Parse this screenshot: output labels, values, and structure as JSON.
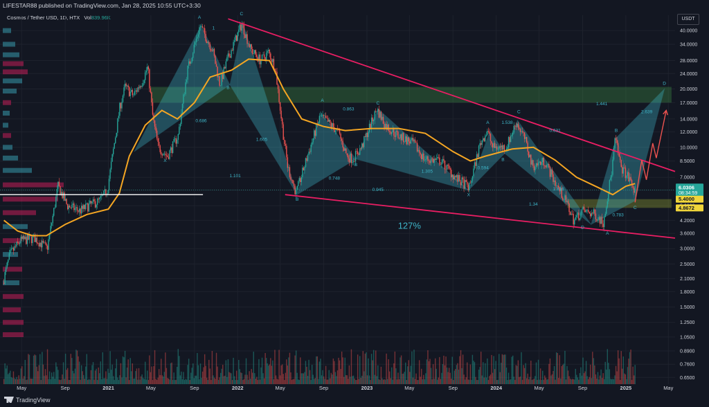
{
  "header": {
    "publisher": "LIFESTAR88 published on TradingView.com, Jan 28, 2025 10:55 UTC+3:30",
    "symbol": "Cosmos / Tether USD, 1D, HTX",
    "volume_label": "Vol",
    "volume_value": "839.96K",
    "currency": "USDT"
  },
  "footer": {
    "logo_text": "TradingView"
  },
  "colors": {
    "background": "#131722",
    "ma": "#f5a623",
    "channel": "#e91e63",
    "pattern_fill": "#3fb6c9",
    "green_zone": "#4caf50",
    "up": "#26a69a",
    "down": "#ef5350",
    "price_tag": "#26a69a",
    "support_tag": "#f0d53a"
  },
  "chart_data": {
    "type": "candlestick",
    "y_scale": "log",
    "ylim": [
      0.6,
      48
    ],
    "xlim": [
      "2020-03-01",
      "2025-05-20"
    ],
    "y_ticks": [
      "40.0000",
      "34.0000",
      "28.0000",
      "24.0000",
      "20.0000",
      "17.0000",
      "14.0000",
      "12.0000",
      "10.0000",
      "8.5000",
      "7.0000",
      "6.0000",
      "5.0000",
      "4.2000",
      "3.6000",
      "3.0000",
      "2.5000",
      "2.1000",
      "1.8000",
      "1.5000",
      "1.2500",
      "1.0500",
      "0.8900",
      "0.7600",
      "0.6500"
    ],
    "x_ticks": [
      {
        "label": "May",
        "date": "2020-05-01"
      },
      {
        "label": "Sep",
        "date": "2020-09-01"
      },
      {
        "label": "2021",
        "date": "2021-01-01"
      },
      {
        "label": "May",
        "date": "2021-05-01"
      },
      {
        "label": "Sep",
        "date": "2021-09-01"
      },
      {
        "label": "2022",
        "date": "2022-01-01"
      },
      {
        "label": "May",
        "date": "2022-05-01"
      },
      {
        "label": "Sep",
        "date": "2022-09-01"
      },
      {
        "label": "2023",
        "date": "2023-01-01"
      },
      {
        "label": "May",
        "date": "2023-05-01"
      },
      {
        "label": "Sep",
        "date": "2023-09-01"
      },
      {
        "label": "2024",
        "date": "2024-01-01"
      },
      {
        "label": "May",
        "date": "2024-05-01"
      },
      {
        "label": "Sep",
        "date": "2024-09-01"
      },
      {
        "label": "2025",
        "date": "2025-01-01"
      },
      {
        "label": "May",
        "date": "2025-05-01"
      }
    ],
    "price_path": [
      [
        "2020-03-12",
        2.0
      ],
      [
        "2020-04-01",
        2.8
      ],
      [
        "2020-05-01",
        3.3
      ],
      [
        "2020-06-10",
        3.4
      ],
      [
        "2020-07-15",
        3.0
      ],
      [
        "2020-08-15",
        6.3
      ],
      [
        "2020-09-10",
        5.0
      ],
      [
        "2020-10-15",
        4.7
      ],
      [
        "2020-11-10",
        5.0
      ],
      [
        "2020-12-10",
        5.3
      ],
      [
        "2021-01-01",
        6.0
      ],
      [
        "2021-02-05",
        16.0
      ],
      [
        "2021-02-20",
        20.5
      ],
      [
        "2021-03-15",
        18.5
      ],
      [
        "2021-04-10",
        22.0
      ],
      [
        "2021-04-25",
        26.0
      ],
      [
        "2021-05-10",
        14.0
      ],
      [
        "2021-05-25",
        10.0
      ],
      [
        "2021-06-20",
        9.0
      ],
      [
        "2021-07-20",
        11.5
      ],
      [
        "2021-08-15",
        25.0
      ],
      [
        "2021-09-20",
        42.5
      ],
      [
        "2021-10-10",
        36.0
      ],
      [
        "2021-10-25",
        32.0
      ],
      [
        "2021-11-15",
        21.0
      ],
      [
        "2021-12-05",
        28.0
      ],
      [
        "2022-01-16",
        43.5
      ],
      [
        "2022-02-10",
        32.0
      ],
      [
        "2022-03-10",
        28.0
      ],
      [
        "2022-04-01",
        31.0
      ],
      [
        "2022-04-20",
        26.0
      ],
      [
        "2022-05-12",
        12.0
      ],
      [
        "2022-05-25",
        8.0
      ],
      [
        "2022-06-18",
        5.8
      ],
      [
        "2022-07-20",
        9.0
      ],
      [
        "2022-08-25",
        14.5
      ],
      [
        "2022-09-15",
        13.5
      ],
      [
        "2022-10-15",
        12.0
      ],
      [
        "2022-11-09",
        9.0
      ],
      [
        "2022-11-25",
        8.7
      ],
      [
        "2022-12-20",
        10.0
      ],
      [
        "2023-02-01",
        15.8
      ],
      [
        "2023-02-25",
        13.0
      ],
      [
        "2023-04-01",
        11.5
      ],
      [
        "2023-05-15",
        10.5
      ],
      [
        "2023-06-15",
        8.7
      ],
      [
        "2023-08-01",
        8.5
      ],
      [
        "2023-09-10",
        7.0
      ],
      [
        "2023-10-20",
        6.2
      ],
      [
        "2023-11-20",
        10.5
      ],
      [
        "2023-12-10",
        12.2
      ],
      [
        "2023-12-25",
        10.0
      ],
      [
        "2024-02-01",
        10.0
      ],
      [
        "2024-03-01",
        13.5
      ],
      [
        "2024-03-25",
        11.0
      ],
      [
        "2024-04-15",
        8.0
      ],
      [
        "2024-05-20",
        8.5
      ],
      [
        "2024-06-20",
        6.5
      ],
      [
        "2024-07-20",
        5.2
      ],
      [
        "2024-08-10",
        4.2
      ],
      [
        "2024-09-05",
        4.7
      ],
      [
        "2024-10-10",
        4.5
      ],
      [
        "2024-11-01",
        4.1
      ],
      [
        "2024-11-25",
        7.5
      ],
      [
        "2024-12-05",
        11.2
      ],
      [
        "2024-12-20",
        8.0
      ],
      [
        "2025-01-15",
        6.8
      ],
      [
        "2025-01-27",
        6.03
      ]
    ],
    "moving_average": [
      [
        "2020-03-12",
        4.2
      ],
      [
        "2020-04-20",
        3.7
      ],
      [
        "2020-06-01",
        3.5
      ],
      [
        "2020-07-10",
        3.5
      ],
      [
        "2020-09-01",
        4.0
      ],
      [
        "2020-11-01",
        4.5
      ],
      [
        "2021-01-01",
        4.8
      ],
      [
        "2021-02-01",
        5.8
      ],
      [
        "2021-03-01",
        9.0
      ],
      [
        "2021-04-15",
        13.0
      ],
      [
        "2021-06-01",
        15.5
      ],
      [
        "2021-07-15",
        14.0
      ],
      [
        "2021-09-01",
        17.0
      ],
      [
        "2021-10-15",
        23.0
      ],
      [
        "2021-12-15",
        25.0
      ],
      [
        "2022-02-01",
        28.5
      ],
      [
        "2022-04-01",
        28.0
      ],
      [
        "2022-05-10",
        20.0
      ],
      [
        "2022-07-01",
        14.0
      ],
      [
        "2022-09-01",
        12.8
      ],
      [
        "2022-11-01",
        12.2
      ],
      [
        "2023-01-15",
        12.5
      ],
      [
        "2023-04-01",
        12.5
      ],
      [
        "2023-06-15",
        11.8
      ],
      [
        "2023-09-01",
        9.5
      ],
      [
        "2023-10-20",
        8.5
      ],
      [
        "2023-12-01",
        9.0
      ],
      [
        "2024-02-15",
        9.8
      ],
      [
        "2024-04-15",
        10.0
      ],
      [
        "2024-06-15",
        8.6
      ],
      [
        "2024-08-15",
        7.0
      ],
      [
        "2024-10-15",
        6.2
      ],
      [
        "2024-11-25",
        5.7
      ],
      [
        "2025-01-01",
        6.3
      ],
      [
        "2025-01-27",
        6.5
      ]
    ],
    "channel_upper": [
      [
        "2021-12-05",
        46.0
      ],
      [
        "2025-05-20",
        7.5
      ]
    ],
    "channel_lower": [
      [
        "2022-05-15",
        5.7
      ],
      [
        "2025-05-20",
        3.4
      ]
    ],
    "white_line": {
      "from": "2020-03-01",
      "to": "2021-09-25",
      "price": 5.7
    },
    "green_zone": {
      "from": "2021-05-01",
      "to": "2025-05-10",
      "low": 17.0,
      "high": 20.5
    },
    "support_zone": {
      "from": "2024-07-20",
      "to": "2025-05-10",
      "low": 4.87,
      "high": 5.4
    },
    "patterns": [
      {
        "name": "pattern-1",
        "points": [
          [
            "2021-03-15",
            9.5
          ],
          [
            "2021-09-20",
            42.5
          ],
          [
            "2021-12-10",
            21.0
          ],
          [
            "2022-01-16",
            43.5
          ],
          [
            "2022-06-18",
            5.7
          ]
        ]
      },
      {
        "name": "pattern-2",
        "points": [
          [
            "2022-06-18",
            5.7
          ],
          [
            "2022-08-25",
            15.0
          ],
          [
            "2022-12-01",
            8.7
          ],
          [
            "2023-02-01",
            15.8
          ],
          [
            "2023-10-15",
            6.0
          ]
        ]
      },
      {
        "name": "pattern-3",
        "points": [
          [
            "2023-10-15",
            6.0
          ],
          [
            "2023-12-15",
            12.2
          ],
          [
            "2024-01-25",
            9.3
          ],
          [
            "2024-03-01",
            13.8
          ],
          [
            "2024-09-25",
            4.0
          ]
        ]
      },
      {
        "name": "pattern-4",
        "points": [
          [
            "2024-09-25",
            4.0
          ],
          [
            "2024-12-05",
            11.2
          ],
          [
            "2025-01-27",
            5.3
          ],
          [
            "2025-04-20",
            20.0
          ]
        ]
      }
    ],
    "projection_arrow": [
      [
        "2025-01-27",
        5.2
      ],
      [
        "2025-02-15",
        8.6
      ],
      [
        "2025-02-28",
        6.8
      ],
      [
        "2025-03-18",
        10.5
      ],
      [
        "2025-03-28",
        8.8
      ],
      [
        "2025-04-25",
        15.5
      ]
    ],
    "volume_profile": [
      {
        "price": 40,
        "length": 12,
        "color": "#3fb6c9"
      },
      {
        "price": 34,
        "length": 18,
        "color": "#3fb6c9"
      },
      {
        "price": 30,
        "length": 24,
        "color": "#3fb6c9"
      },
      {
        "price": 27,
        "length": 30,
        "color": "#e91e63"
      },
      {
        "price": 24.5,
        "length": 36,
        "color": "#e91e63"
      },
      {
        "price": 22,
        "length": 28,
        "color": "#3fb6c9"
      },
      {
        "price": 19.5,
        "length": 20,
        "color": "#3fb6c9"
      },
      {
        "price": 17,
        "length": 12,
        "color": "#e91e63"
      },
      {
        "price": 15,
        "length": 10,
        "color": "#3fb6c9"
      },
      {
        "price": 13,
        "length": 8,
        "color": "#3fb6c9"
      },
      {
        "price": 11.5,
        "length": 12,
        "color": "#e91e63"
      },
      {
        "price": 10,
        "length": 14,
        "color": "#3fb6c9"
      },
      {
        "price": 8.8,
        "length": 22,
        "color": "#3fb6c9"
      },
      {
        "price": 7.6,
        "length": 42,
        "color": "#3fb6c9"
      },
      {
        "price": 6.4,
        "length": 88,
        "color": "#e91e63"
      },
      {
        "price": 5.4,
        "length": 80,
        "color": "#e91e63"
      },
      {
        "price": 4.6,
        "length": 48,
        "color": "#e91e63"
      },
      {
        "price": 3.9,
        "length": 36,
        "color": "#3fb6c9"
      },
      {
        "price": 3.3,
        "length": 26,
        "color": "#e91e63"
      },
      {
        "price": 2.8,
        "length": 22,
        "color": "#3fb6c9"
      },
      {
        "price": 2.35,
        "length": 28,
        "color": "#e91e63"
      },
      {
        "price": 2.0,
        "length": 24,
        "color": "#3fb6c9"
      },
      {
        "price": 1.7,
        "length": 30,
        "color": "#e91e63"
      },
      {
        "price": 1.45,
        "length": 26,
        "color": "#e91e63"
      },
      {
        "price": 1.25,
        "length": 30,
        "color": "#e91e63"
      },
      {
        "price": 1.08,
        "length": 30,
        "color": "#e91e63"
      }
    ],
    "annotations": [
      {
        "text": "A",
        "date": "2021-09-15",
        "price": 46.0
      },
      {
        "text": "1",
        "date": "2021-10-25",
        "price": 40.5
      },
      {
        "text": "C",
        "date": "2022-01-12",
        "price": 48.0
      },
      {
        "text": "B",
        "date": "2021-12-05",
        "price": 20.0
      },
      {
        "text": "0.686",
        "date": "2021-09-20",
        "price": 13.5
      },
      {
        "text": "X",
        "date": "2021-06-10",
        "price": 8.4
      },
      {
        "text": "1.605",
        "date": "2022-03-10",
        "price": 10.8
      },
      {
        "text": "1.101",
        "date": "2021-12-25",
        "price": 7.0
      },
      {
        "text": "B",
        "date": "2022-06-18",
        "price": 5.3
      },
      {
        "text": "A",
        "date": "2022-08-28",
        "price": 17.2
      },
      {
        "text": "0.863",
        "date": "2022-11-10",
        "price": 15.5
      },
      {
        "text": "C",
        "date": "2023-02-01",
        "price": 16.6
      },
      {
        "text": "B",
        "date": "2022-12-01",
        "price": 8.0
      },
      {
        "text": "0.748",
        "date": "2022-10-01",
        "price": 6.8
      },
      {
        "text": "1.305",
        "date": "2023-06-20",
        "price": 7.4
      },
      {
        "text": "0.945",
        "date": "2023-02-01",
        "price": 5.95
      },
      {
        "text": "X",
        "date": "2023-10-15",
        "price": 5.6
      },
      {
        "text": "A",
        "date": "2023-12-08",
        "price": 13.2
      },
      {
        "text": "1.538",
        "date": "2024-02-01",
        "price": 13.2
      },
      {
        "text": "C",
        "date": "2024-03-05",
        "price": 15.0
      },
      {
        "text": "B",
        "date": "2024-01-20",
        "price": 8.5
      },
      {
        "text": "0.594",
        "date": "2023-11-25",
        "price": 7.7
      },
      {
        "text": "0.631",
        "date": "2024-06-15",
        "price": 12.0
      },
      {
        "text": "1.441",
        "date": "2024-10-25",
        "price": 16.5
      },
      {
        "text": "1.818",
        "date": "2024-06-25",
        "price": 6.0
      },
      {
        "text": "1.34",
        "date": "2024-04-15",
        "price": 5.0
      },
      {
        "text": "D",
        "date": "2024-09-01",
        "price": 3.8
      },
      {
        "text": "A",
        "date": "2024-11-10",
        "price": 3.55
      },
      {
        "text": "B",
        "date": "2024-12-05",
        "price": 12.0
      },
      {
        "text": "0.783",
        "date": "2024-12-10",
        "price": 4.4
      },
      {
        "text": "C",
        "date": "2025-01-27",
        "price": 4.8
      },
      {
        "text": "2.639",
        "date": "2025-03-01",
        "price": 15.0
      },
      {
        "text": "D",
        "date": "2025-04-20",
        "price": 21.0
      },
      {
        "text": "127%",
        "date": "2023-05-01",
        "price": 3.8
      }
    ],
    "last_price": "6.0306",
    "countdown": "08:34:59",
    "support_high_label": "5.4000",
    "support_low_label": "4.8672"
  }
}
